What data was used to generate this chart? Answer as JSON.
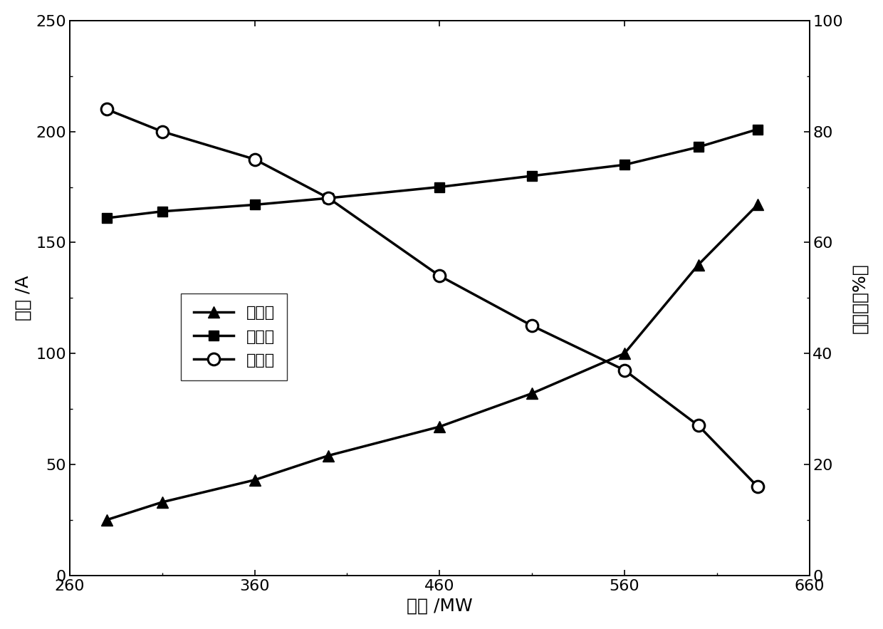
{
  "x_bianpin": [
    280,
    310,
    360,
    400,
    460,
    510,
    560,
    600,
    632
  ],
  "y_bianpin": [
    25,
    33,
    43,
    54,
    67,
    82,
    100,
    140,
    167
  ],
  "x_gongpin": [
    280,
    310,
    360,
    400,
    460,
    510,
    560,
    600,
    632
  ],
  "y_gongpin": [
    161,
    164,
    167,
    170,
    175,
    180,
    185,
    193,
    201
  ],
  "x_jieneng": [
    280,
    310,
    360,
    400,
    460,
    510,
    560,
    600,
    632
  ],
  "y_jieneng": [
    84,
    80,
    75,
    68,
    54,
    45,
    37,
    27,
    16
  ],
  "xlabel": "负荷 /MW",
  "ylabel_left": "电流 /A",
  "ylabel_right": "节能率（%）",
  "legend_bianpin": "变频时",
  "legend_gongpin": "工频时",
  "legend_jieneng": "节能率",
  "xlim": [
    260,
    660
  ],
  "xticks": [
    260,
    360,
    460,
    560,
    660
  ],
  "ylim_left": [
    0,
    250
  ],
  "yticks_left": [
    0,
    50,
    100,
    150,
    200,
    250
  ],
  "ylim_right": [
    0,
    100
  ],
  "yticks_right": [
    0,
    20,
    40,
    60,
    80,
    100
  ],
  "line_color": "#000000",
  "bg_color": "#ffffff",
  "fontsize_label": 18,
  "fontsize_tick": 16,
  "fontsize_legend": 16
}
